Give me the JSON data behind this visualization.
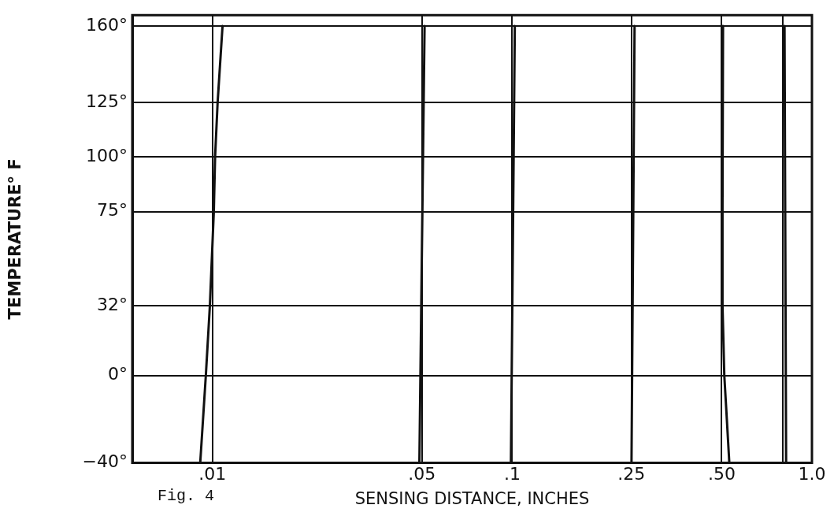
{
  "chart_data": {
    "type": "line",
    "xlabel": "SENSING DISTANCE, INCHES",
    "ylabel": "TEMPERATURE° F",
    "annotations": [
      "Fig. 4"
    ],
    "log": "x",
    "grid": true,
    "legend": false,
    "marker": "none",
    "line_style": "solid",
    "xlim": [
      0.0054,
      1.0
    ],
    "xticks": [
      {
        "value": 0.01,
        "label": ".01"
      },
      {
        "value": 0.05,
        "label": ".05"
      },
      {
        "value": 0.1,
        "label": ".1"
      },
      {
        "value": 0.25,
        "label": ".25"
      },
      {
        "value": 0.5,
        "label": ".50"
      },
      {
        "value": 0.8,
        "label": null
      },
      {
        "value": 1.0,
        "label": "1.0"
      }
    ],
    "ylim": [
      -40,
      165
    ],
    "yticks": [
      {
        "value": -40,
        "label": "−40°"
      },
      {
        "value": 0,
        "label": "0°"
      },
      {
        "value": 32,
        "label": "32°"
      },
      {
        "value": 75,
        "label": "75°"
      },
      {
        "value": 100,
        "label": "100°"
      },
      {
        "value": 125,
        "label": "125°"
      },
      {
        "value": 160,
        "label": "160°"
      }
    ],
    "series": [
      {
        "color": "#111111",
        "x": [
          0.0091,
          0.0095,
          0.0098,
          0.0101,
          0.0102,
          0.0104,
          0.0108
        ],
        "values": [
          -40,
          0,
          32,
          75,
          100,
          125,
          160
        ]
      },
      {
        "color": "#111111",
        "x": [
          0.049,
          0.051
        ],
        "values": [
          -40,
          160
        ]
      },
      {
        "color": "#111111",
        "x": [
          0.099,
          0.102
        ],
        "values": [
          -40,
          160
        ]
      },
      {
        "color": "#111111",
        "x": [
          0.25,
          0.256
        ],
        "values": [
          -40,
          160
        ]
      },
      {
        "color": "#111111",
        "x": [
          0.53,
          0.52,
          0.51,
          0.503,
          0.503,
          0.505
        ],
        "values": [
          -40,
          -20,
          0,
          32,
          75,
          160
        ]
      },
      {
        "color": "#111111",
        "x": [
          0.82,
          0.81
        ],
        "values": [
          -40,
          160
        ]
      }
    ]
  }
}
